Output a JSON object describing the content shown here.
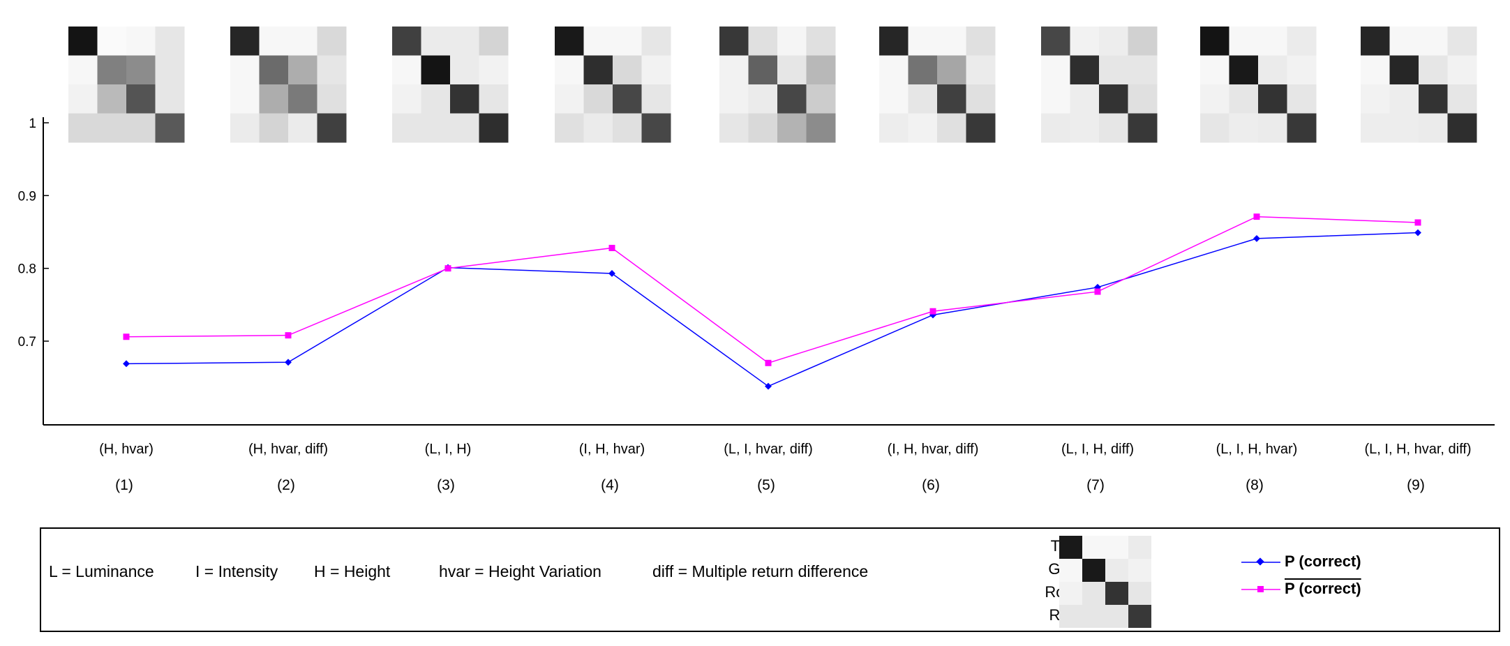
{
  "chart_data": {
    "type": "line",
    "categories": [
      "(H, hvar)",
      "(H, hvar, diff)",
      "(L, I, H)",
      "(I, H, hvar)",
      "(L, I, hvar, diff)",
      "(I, H, hvar, diff)",
      "(L, I, H, diff)",
      "(L, I, H, hvar)",
      "(L, I, H, hvar, diff)"
    ],
    "indices": [
      "(1)",
      "(2)",
      "(3)",
      "(4)",
      "(5)",
      "(6)",
      "(7)",
      "(8)",
      "(9)"
    ],
    "ylim": [
      0.585,
      1.0
    ],
    "yticks": [
      {
        "v": 0.7,
        "label": "0.7"
      },
      {
        "v": 0.8,
        "label": "0.8"
      },
      {
        "v": 0.9,
        "label": "0.9"
      },
      {
        "v": 1.0,
        "label": "1"
      }
    ],
    "grid": false,
    "series": [
      {
        "name": "P (correct)",
        "color": "#0000ff",
        "marker": "diamond",
        "values": [
          0.669,
          0.671,
          0.801,
          0.793,
          0.638,
          0.736,
          0.774,
          0.841,
          0.849
        ]
      },
      {
        "name": "P̄ (correct)",
        "color": "#ff00ff",
        "marker": "square",
        "values": [
          0.706,
          0.708,
          0.8,
          0.828,
          0.67,
          0.741,
          0.768,
          0.871,
          0.863
        ]
      }
    ],
    "confusion_matrices": [
      [
        [
          0.92,
          0.02,
          0.03,
          0.1
        ],
        [
          0.03,
          0.5,
          0.45,
          0.1
        ],
        [
          0.05,
          0.27,
          0.67,
          0.1
        ],
        [
          0.15,
          0.15,
          0.15,
          0.65
        ]
      ],
      [
        [
          0.85,
          0.03,
          0.03,
          0.15
        ],
        [
          0.03,
          0.58,
          0.32,
          0.1
        ],
        [
          0.03,
          0.32,
          0.52,
          0.12
        ],
        [
          0.08,
          0.17,
          0.08,
          0.75
        ]
      ],
      [
        [
          0.75,
          0.08,
          0.08,
          0.17
        ],
        [
          0.03,
          0.92,
          0.08,
          0.05
        ],
        [
          0.05,
          0.1,
          0.8,
          0.1
        ],
        [
          0.1,
          0.1,
          0.1,
          0.82
        ]
      ],
      [
        [
          0.9,
          0.03,
          0.03,
          0.1
        ],
        [
          0.03,
          0.82,
          0.15,
          0.05
        ],
        [
          0.05,
          0.15,
          0.72,
          0.1
        ],
        [
          0.12,
          0.08,
          0.12,
          0.72
        ]
      ],
      [
        [
          0.78,
          0.12,
          0.04,
          0.12
        ],
        [
          0.05,
          0.62,
          0.1,
          0.28
        ],
        [
          0.05,
          0.08,
          0.72,
          0.2
        ],
        [
          0.1,
          0.15,
          0.3,
          0.45
        ]
      ],
      [
        [
          0.85,
          0.03,
          0.03,
          0.12
        ],
        [
          0.03,
          0.55,
          0.35,
          0.08
        ],
        [
          0.03,
          0.1,
          0.75,
          0.12
        ],
        [
          0.07,
          0.05,
          0.12,
          0.78
        ]
      ],
      [
        [
          0.72,
          0.05,
          0.07,
          0.18
        ],
        [
          0.03,
          0.82,
          0.1,
          0.1
        ],
        [
          0.03,
          0.07,
          0.8,
          0.12
        ],
        [
          0.08,
          0.07,
          0.1,
          0.78
        ]
      ],
      [
        [
          0.92,
          0.03,
          0.03,
          0.08
        ],
        [
          0.03,
          0.9,
          0.08,
          0.05
        ],
        [
          0.05,
          0.1,
          0.8,
          0.1
        ],
        [
          0.1,
          0.07,
          0.08,
          0.78
        ]
      ],
      [
        [
          0.85,
          0.03,
          0.03,
          0.1
        ],
        [
          0.03,
          0.85,
          0.1,
          0.05
        ],
        [
          0.05,
          0.07,
          0.8,
          0.1
        ],
        [
          0.07,
          0.07,
          0.08,
          0.82
        ]
      ]
    ]
  },
  "legend": {
    "abbreviations": [
      "L = Luminance",
      "I = Intensity",
      "H = Height",
      "hvar = Height Variation",
      "diff = Multiple return difference"
    ],
    "classes": [
      "Trees",
      "Grass",
      "Roads",
      "Roofs"
    ],
    "key_matrix": [
      [
        0.9,
        0.03,
        0.03,
        0.08
      ],
      [
        0.03,
        0.9,
        0.08,
        0.05
      ],
      [
        0.05,
        0.1,
        0.8,
        0.1
      ],
      [
        0.1,
        0.1,
        0.1,
        0.78
      ]
    ],
    "series_labels": [
      "P (correct)",
      "P (correct)"
    ]
  }
}
